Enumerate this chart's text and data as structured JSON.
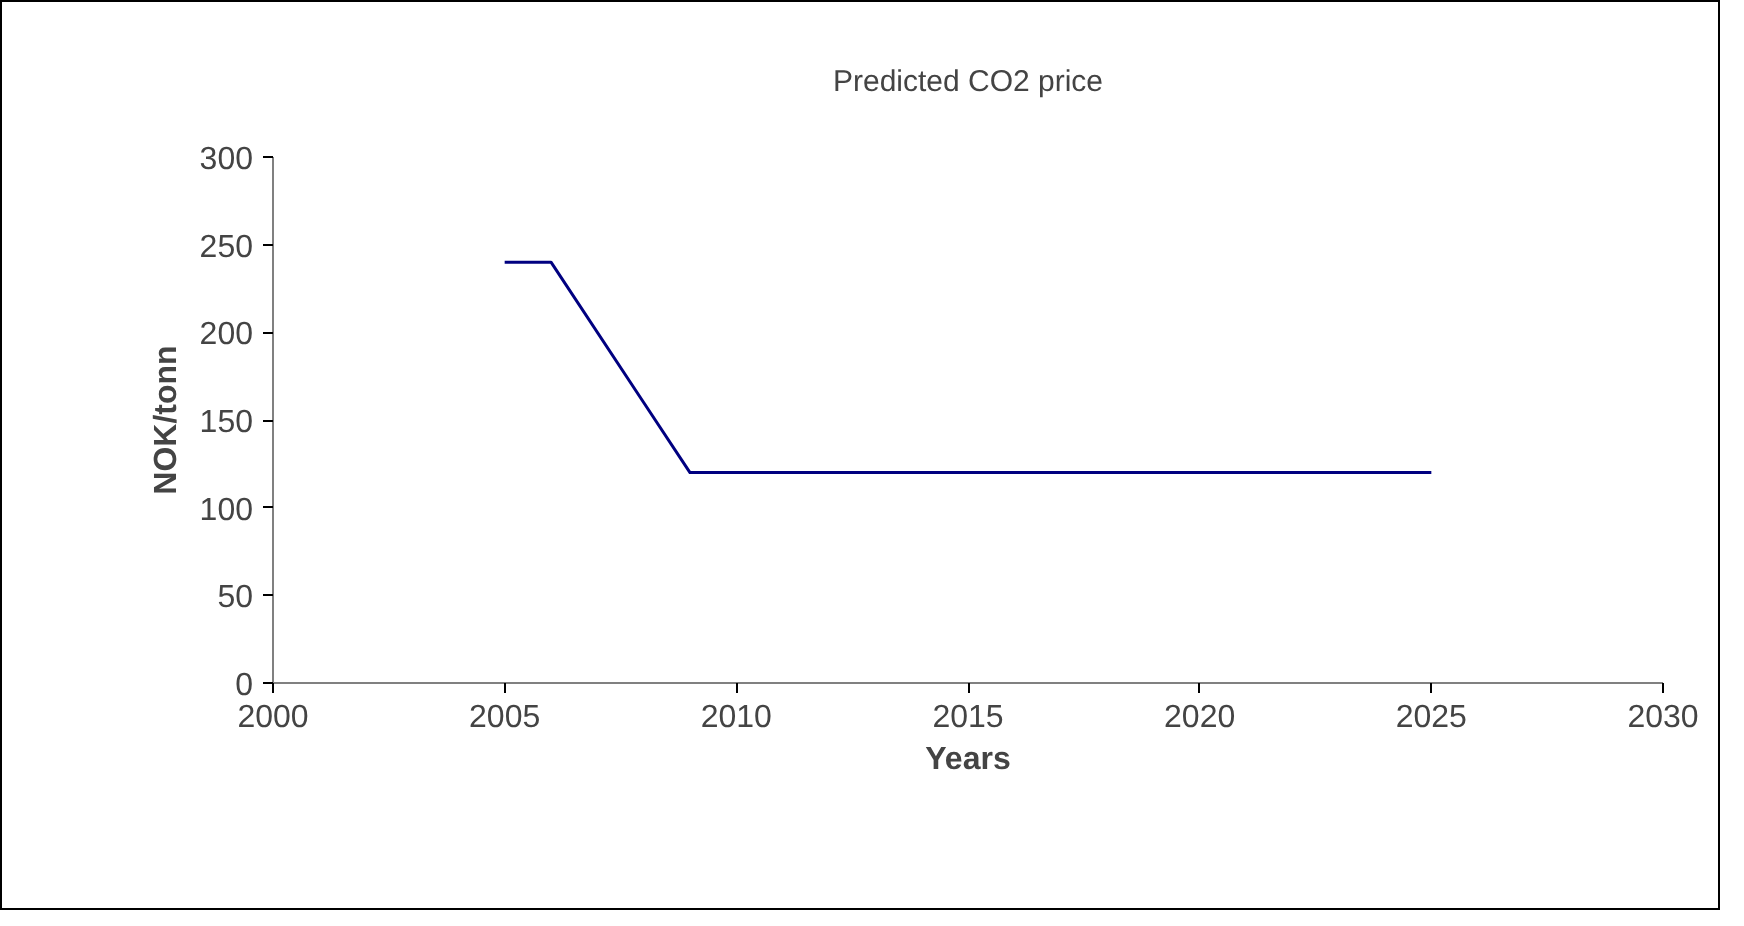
{
  "chart_data": {
    "type": "line",
    "title": "Predicted CO2 price",
    "xlabel": "Years",
    "ylabel": "NOK/tonn",
    "x": [
      2005,
      2006,
      2008,
      2009,
      2025
    ],
    "series": [
      {
        "color": "#000080",
        "values": [
          240,
          240,
          160,
          120,
          120
        ]
      }
    ],
    "xlim": [
      2000,
      2030
    ],
    "xticks": [
      2000,
      2005,
      2010,
      2015,
      2020,
      2025,
      2030
    ],
    "ylim": [
      0,
      300
    ],
    "yticks": [
      0,
      50,
      100,
      150,
      200,
      250,
      300
    ],
    "grid": false,
    "marker": "none",
    "line_style": "solid"
  }
}
